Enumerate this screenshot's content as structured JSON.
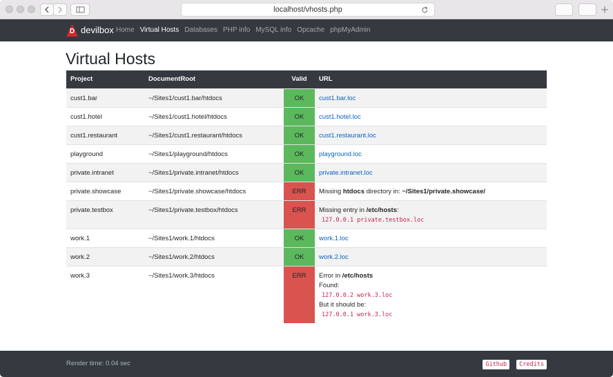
{
  "browser": {
    "address": "localhost/vhosts.php"
  },
  "nav": {
    "logo": "D",
    "brand": "devilbox",
    "links": [
      {
        "label": "Home"
      },
      {
        "label": "Virtual Hosts",
        "active": true
      },
      {
        "label": "Databases"
      },
      {
        "label": "PHP info"
      },
      {
        "label": "MySQL info"
      },
      {
        "label": "Opcache"
      },
      {
        "label": "phpMyAdmin"
      }
    ]
  },
  "page": {
    "title": "Virtual Hosts"
  },
  "table": {
    "headers": [
      "Project",
      "DocumentRoot",
      "Valid",
      "URL"
    ],
    "rows": [
      {
        "project": "cust1.bar",
        "docroot": "~/Sites1/cust1.bar/htdocs",
        "valid": "OK",
        "url": "cust1.bar.loc"
      },
      {
        "project": "cust1.hotel",
        "docroot": "~/Sites1/cust1.hotel/htdocs",
        "valid": "OK",
        "url": "cust1.hotel.loc"
      },
      {
        "project": "cust1.restaurant",
        "docroot": "~/Sites1/cust1.restaurant/htdocs",
        "valid": "OK",
        "url": "cust1.restaurant.loc"
      },
      {
        "project": "playground",
        "docroot": "~/Sites1/playground/htdocs",
        "valid": "OK",
        "url": "playground.loc"
      },
      {
        "project": "private.intranet",
        "docroot": "~/Sites1/private.intranet/htdocs",
        "valid": "OK",
        "url": "private.intranet.loc"
      },
      {
        "project": "private.showcase",
        "docroot": "~/Sites1/private.showcase/htdocs",
        "valid": "ERR",
        "message": [
          [
            {
              "text": "Missing "
            },
            {
              "bold": "htdocs"
            },
            {
              "text": " directory in: "
            },
            {
              "bold": "~/Sites1/private.showcase/"
            }
          ]
        ]
      },
      {
        "project": "private.testbox",
        "docroot": "~/Sites1/private.testbox/htdocs",
        "valid": "ERR",
        "message": [
          [
            {
              "text": "Missing entry in "
            },
            {
              "bold": "/etc/hosts"
            },
            {
              "text": ":"
            }
          ],
          [
            {
              "code": "127.0.0.1 private.testbox.loc"
            }
          ]
        ]
      },
      {
        "project": "work.1",
        "docroot": "~/Sites1/work.1/htdocs",
        "valid": "OK",
        "url": "work.1.loc"
      },
      {
        "project": "work.2",
        "docroot": "~/Sites1/work.2/htdocs",
        "valid": "OK",
        "url": "work.2.loc"
      },
      {
        "project": "work.3",
        "docroot": "~/Sites1/work.3/htdocs",
        "valid": "ERR",
        "message": [
          [
            {
              "text": "Error in "
            },
            {
              "bold": "/etc/hosts"
            }
          ],
          [
            {
              "text": "Found:"
            }
          ],
          [
            {
              "code": "127.0.0.2 work.3.loc"
            }
          ],
          [
            {
              "text": "But it should be:"
            }
          ],
          [
            {
              "code": "127.0.0.1 work.3.loc"
            }
          ]
        ]
      }
    ]
  },
  "footer": {
    "render_time": "Render time: 0.04 sec",
    "buttons": [
      "Github",
      "Credits"
    ]
  }
}
